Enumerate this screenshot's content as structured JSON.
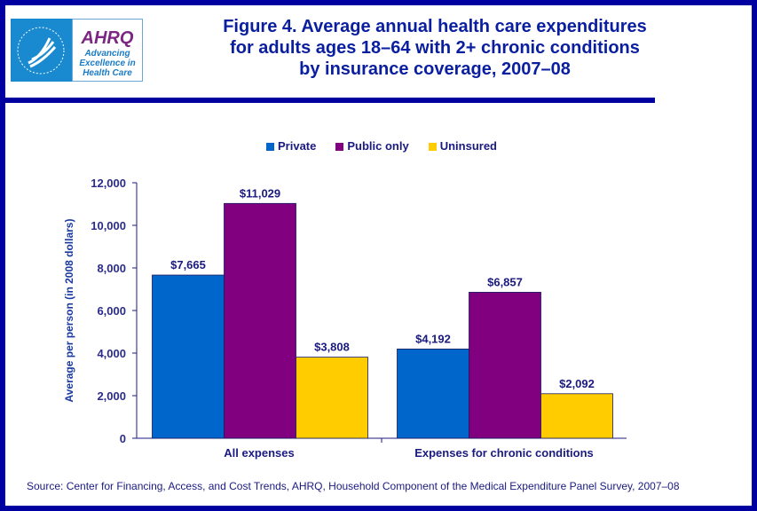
{
  "header": {
    "title": "Figure 4. Average annual health care expenditures for adults ages 18–64 with 2+ chronic conditions by insurance coverage, 2007–08",
    "title_lines": [
      "Figure 4. Average annual health care expenditures",
      "for adults ages 18–64 with 2+ chronic conditions",
      "by insurance coverage, 2007–08"
    ],
    "logo": {
      "brand": "AHRQ",
      "tagline": [
        "Advancing",
        "Excellence in",
        "Health Care"
      ],
      "seal": "DEPARTMENT OF HEALTH & HUMAN SERVICES USA"
    }
  },
  "chart_data": {
    "type": "bar",
    "categories": [
      "All expenses",
      "Expenses for chronic conditions"
    ],
    "series": [
      {
        "name": "Private",
        "color": "#0066cc",
        "values": [
          7665,
          4192
        ],
        "labels": [
          "$7,665",
          "$4,192"
        ]
      },
      {
        "name": "Public only",
        "color": "#800080",
        "values": [
          11029,
          6857
        ],
        "labels": [
          "$11,029",
          "$6,857"
        ]
      },
      {
        "name": "Uninsured",
        "color": "#ffcc00",
        "values": [
          3808,
          2092
        ],
        "labels": [
          "$3,808",
          "$2,092"
        ]
      }
    ],
    "ylabel": "Average per person (in 2008 dollars)",
    "ylim": [
      0,
      12000
    ],
    "yticks": [
      "0",
      "2,000",
      "4,000",
      "6,000",
      "8,000",
      "10,000",
      "12,000"
    ],
    "grid": false,
    "legend": "top"
  },
  "source": "Source: Center for Financing, Access, and Cost Trends, AHRQ, Household Component of the Medical Expenditure Panel Survey, 2007–08"
}
